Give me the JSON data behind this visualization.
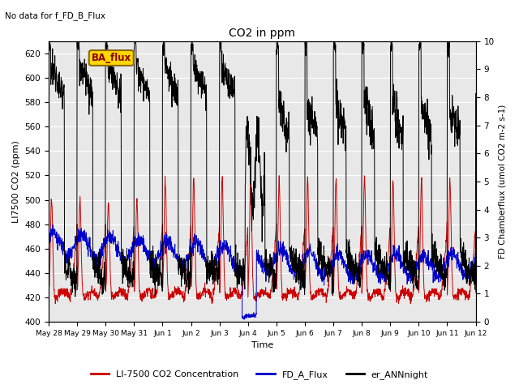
{
  "title": "CO2 in ppm",
  "top_left_text": "No data for f_FD_B_Flux",
  "ba_flux_label": "BA_flux",
  "xlabel": "Time",
  "ylabel_left": "LI7500 CO2 (ppm)",
  "ylabel_right": "FD Chamberflux (umol CO2 m-2 s-1)",
  "ylim_left": [
    400,
    630
  ],
  "ylim_right": [
    0.0,
    10.0
  ],
  "yticks_left": [
    400,
    420,
    440,
    460,
    480,
    500,
    520,
    540,
    560,
    580,
    600,
    620
  ],
  "yticks_right": [
    0.0,
    1.0,
    2.0,
    3.0,
    4.0,
    5.0,
    6.0,
    7.0,
    8.0,
    9.0,
    10.0
  ],
  "n_points": 2000,
  "background_color": "#e8e8e8",
  "line_colors": {
    "red": "#cc0000",
    "blue": "#0000cc",
    "black": "#000000"
  },
  "legend_labels": [
    "LI-7500 CO2 Concentration",
    "FD_A_Flux",
    "er_ANNnight"
  ],
  "xtick_labels": [
    "May 28",
    "May 29",
    "May 30",
    "May 31",
    "Jun 1",
    "Jun 2",
    "Jun 3",
    "Jun 4",
    "Jun 5",
    "Jun 6",
    "Jun 7",
    "Jun 8",
    "Jun 9",
    "Jun 10",
    "Jun 11",
    "Jun 12"
  ],
  "figsize": [
    6.4,
    4.8
  ],
  "dpi": 100
}
